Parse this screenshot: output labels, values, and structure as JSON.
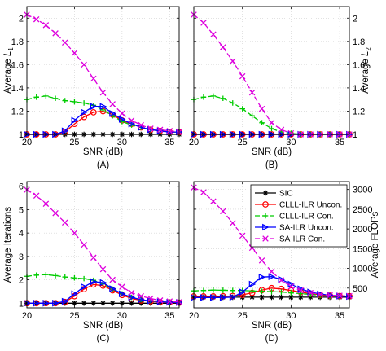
{
  "chart_data": [
    {
      "type": "line",
      "panel_label": "(A)",
      "xlabel": "SNR (dB)",
      "ylabel": "Average L_1",
      "ylabel_main": "Average ",
      "ylabel_var": "L",
      "ylabel_sub": "1",
      "ylabel_side": "left",
      "xlim": [
        20,
        36
      ],
      "ylim": [
        1,
        2.1
      ],
      "xticks": [
        20,
        25,
        30,
        35
      ],
      "yticks": [
        1,
        1.2,
        1.4,
        1.6,
        1.8,
        2
      ],
      "ytick_labels": [
        "1",
        "1.2",
        "1.4",
        "1.6",
        "1.8",
        "2"
      ],
      "grid": true,
      "x": [
        20,
        21,
        22,
        23,
        24,
        25,
        26,
        27,
        28,
        29,
        30,
        31,
        32,
        33,
        34,
        35,
        36
      ],
      "series": [
        {
          "name": "SIC",
          "color": "#000000",
          "marker": "star",
          "dash": "",
          "values": [
            1,
            1,
            1,
            1,
            1,
            1,
            1,
            1,
            1,
            1,
            1,
            1,
            1,
            1,
            1,
            1,
            1
          ]
        },
        {
          "name": "CLLL-ILR Uncon.",
          "color": "#ff0000",
          "marker": "circle",
          "dash": "",
          "values": [
            1,
            1,
            1,
            1,
            1.02,
            1.09,
            1.15,
            1.19,
            1.2,
            1.17,
            1.12,
            1.09,
            1.06,
            1.04,
            1.03,
            1.02,
            1.02
          ]
        },
        {
          "name": "CLLL-ILR Con.",
          "color": "#00cc00",
          "marker": "plus",
          "dash": "6,3",
          "values": [
            1.3,
            1.32,
            1.33,
            1.31,
            1.29,
            1.28,
            1.27,
            1.25,
            1.21,
            1.16,
            1.11,
            1.08,
            1.06,
            1.04,
            1.03,
            1.02,
            1.02
          ]
        },
        {
          "name": "SA-ILR Uncon.",
          "color": "#0000ff",
          "marker": "triangle-right",
          "dash": "",
          "values": [
            1,
            1,
            1,
            1,
            1.03,
            1.12,
            1.19,
            1.24,
            1.24,
            1.18,
            1.13,
            1.09,
            1.06,
            1.04,
            1.03,
            1.02,
            1.02
          ]
        },
        {
          "name": "SA-ILR Con.",
          "color": "#dd00dd",
          "marker": "x",
          "dash": "6,3",
          "values": [
            2.03,
            1.99,
            1.94,
            1.87,
            1.79,
            1.7,
            1.6,
            1.48,
            1.36,
            1.26,
            1.18,
            1.12,
            1.08,
            1.05,
            1.04,
            1.03,
            1.02
          ]
        }
      ]
    },
    {
      "type": "line",
      "panel_label": "(B)",
      "xlabel": "SNR (dB)",
      "ylabel": "Average L_2",
      "ylabel_main": "Average ",
      "ylabel_var": "L",
      "ylabel_sub": "2",
      "ylabel_side": "right",
      "xlim": [
        20,
        36
      ],
      "ylim": [
        1,
        2.1
      ],
      "xticks": [
        20,
        25,
        30,
        35
      ],
      "yticks": [
        1,
        1.2,
        1.4,
        1.6,
        1.8,
        2
      ],
      "ytick_labels": [
        "1",
        "1.2",
        "1.4",
        "1.6",
        "1.8",
        "2"
      ],
      "grid": true,
      "x": [
        20,
        21,
        22,
        23,
        24,
        25,
        26,
        27,
        28,
        29,
        30,
        31,
        32,
        33,
        34,
        35,
        36
      ],
      "series": [
        {
          "name": "SIC",
          "color": "#000000",
          "marker": "star",
          "dash": "",
          "values": [
            1,
            1,
            1,
            1,
            1,
            1,
            1,
            1,
            1,
            1,
            1,
            1,
            1,
            1,
            1,
            1,
            1
          ]
        },
        {
          "name": "CLLL-ILR Uncon.",
          "color": "#ff0000",
          "marker": "circle",
          "dash": "",
          "values": [
            1,
            1,
            1,
            1,
            1,
            1,
            1,
            1,
            1,
            1,
            1,
            1,
            1,
            1,
            1,
            1,
            1
          ]
        },
        {
          "name": "CLLL-ILR Con.",
          "color": "#00cc00",
          "marker": "plus",
          "dash": "6,3",
          "values": [
            1.3,
            1.32,
            1.33,
            1.31,
            1.27,
            1.22,
            1.16,
            1.1,
            1.05,
            1.02,
            1.01,
            1,
            1,
            1,
            1,
            1,
            1
          ]
        },
        {
          "name": "SA-ILR Uncon.",
          "color": "#0000ff",
          "marker": "triangle-right",
          "dash": "",
          "values": [
            1,
            1,
            1,
            1,
            1,
            1,
            1,
            1,
            1,
            1,
            1,
            1,
            1,
            1,
            1,
            1,
            1
          ]
        },
        {
          "name": "SA-ILR Con.",
          "color": "#dd00dd",
          "marker": "x",
          "dash": "6,3",
          "values": [
            2.03,
            1.96,
            1.86,
            1.75,
            1.63,
            1.5,
            1.36,
            1.22,
            1.1,
            1.04,
            1.01,
            1,
            1,
            1,
            1,
            1,
            1
          ]
        }
      ]
    },
    {
      "type": "line",
      "panel_label": "(C)",
      "xlabel": "SNR (dB)",
      "ylabel": "Average Iterations",
      "ylabel_main": "Average Iterations",
      "ylabel_var": "",
      "ylabel_sub": "",
      "ylabel_side": "left",
      "xlim": [
        20,
        36
      ],
      "ylim": [
        0.8,
        6.2
      ],
      "xticks": [
        20,
        25,
        30,
        35
      ],
      "yticks": [
        1,
        2,
        3,
        4,
        5,
        6
      ],
      "ytick_labels": [
        "1",
        "2",
        "3",
        "4",
        "5",
        "6"
      ],
      "grid": true,
      "x": [
        20,
        21,
        22,
        23,
        24,
        25,
        26,
        27,
        28,
        29,
        30,
        31,
        32,
        33,
        34,
        35,
        36
      ],
      "series": [
        {
          "name": "SIC",
          "color": "#000000",
          "marker": "star",
          "dash": "",
          "values": [
            1,
            1,
            1,
            1,
            1,
            1,
            1,
            1,
            1,
            1,
            1,
            1,
            1,
            1,
            1,
            1,
            1
          ]
        },
        {
          "name": "CLLL-ILR Uncon.",
          "color": "#ff0000",
          "marker": "circle",
          "dash": "",
          "values": [
            1,
            1,
            1,
            1,
            1.05,
            1.3,
            1.6,
            1.8,
            1.75,
            1.55,
            1.35,
            1.2,
            1.12,
            1.08,
            1.05,
            1.03,
            1.02
          ]
        },
        {
          "name": "CLLL-ILR Con.",
          "color": "#00cc00",
          "marker": "plus",
          "dash": "6,3",
          "values": [
            2.15,
            2.2,
            2.22,
            2.18,
            2.12,
            2.08,
            2.05,
            1.98,
            1.82,
            1.6,
            1.4,
            1.25,
            1.15,
            1.1,
            1.06,
            1.04,
            1.03
          ]
        },
        {
          "name": "SA-ILR Uncon.",
          "color": "#0000ff",
          "marker": "triangle-right",
          "dash": "",
          "values": [
            1,
            1,
            1,
            1,
            1.08,
            1.4,
            1.7,
            1.92,
            1.88,
            1.62,
            1.4,
            1.25,
            1.15,
            1.1,
            1.06,
            1.04,
            1.03
          ]
        },
        {
          "name": "SA-ILR Con.",
          "color": "#dd00dd",
          "marker": "x",
          "dash": "6,3",
          "values": [
            5.85,
            5.6,
            5.25,
            4.85,
            4.45,
            4.0,
            3.5,
            2.95,
            2.45,
            2.0,
            1.7,
            1.45,
            1.3,
            1.2,
            1.12,
            1.08,
            1.05
          ]
        }
      ]
    },
    {
      "type": "line",
      "panel_label": "(D)",
      "xlabel": "SNR (dB)",
      "ylabel": "Average FLOPs",
      "ylabel_main": "Average FLOPs",
      "ylabel_var": "",
      "ylabel_sub": "",
      "ylabel_side": "right",
      "xlim": [
        20,
        36
      ],
      "ylim": [
        0,
        3200
      ],
      "xticks": [
        20,
        25,
        30,
        35
      ],
      "yticks": [
        500,
        1000,
        1500,
        2000,
        2500,
        3000
      ],
      "ytick_labels": [
        "500",
        "1000",
        "1500",
        "2000",
        "2500",
        "3000"
      ],
      "grid": true,
      "legend_position": "top-right",
      "x": [
        20,
        21,
        22,
        23,
        24,
        25,
        26,
        27,
        28,
        29,
        30,
        31,
        32,
        33,
        34,
        35,
        36
      ],
      "series": [
        {
          "name": "SIC",
          "color": "#000000",
          "marker": "star",
          "dash": "",
          "values": [
            270,
            270,
            270,
            270,
            270,
            270,
            270,
            270,
            270,
            270,
            270,
            270,
            270,
            270,
            270,
            270,
            270
          ]
        },
        {
          "name": "CLLL-ILR Uncon.",
          "color": "#ff0000",
          "marker": "circle",
          "dash": "",
          "values": [
            290,
            290,
            290,
            295,
            300,
            330,
            380,
            450,
            500,
            480,
            440,
            400,
            360,
            330,
            310,
            300,
            295
          ]
        },
        {
          "name": "CLLL-ILR Con.",
          "color": "#00cc00",
          "marker": "plus",
          "dash": "6,3",
          "values": [
            430,
            440,
            450,
            445,
            440,
            440,
            430,
            420,
            410,
            400,
            380,
            360,
            340,
            320,
            305,
            300,
            295
          ]
        },
        {
          "name": "SA-ILR Uncon.",
          "color": "#0000ff",
          "marker": "triangle-right",
          "dash": "",
          "values": [
            260,
            260,
            260,
            260,
            270,
            400,
            600,
            780,
            790,
            720,
            600,
            480,
            400,
            350,
            320,
            300,
            290
          ]
        },
        {
          "name": "SA-ILR Con.",
          "color": "#dd00dd",
          "marker": "x",
          "dash": "6,3",
          "values": [
            3050,
            2930,
            2700,
            2450,
            2150,
            1830,
            1520,
            1200,
            920,
            700,
            540,
            440,
            380,
            340,
            320,
            310,
            300
          ]
        }
      ]
    }
  ]
}
